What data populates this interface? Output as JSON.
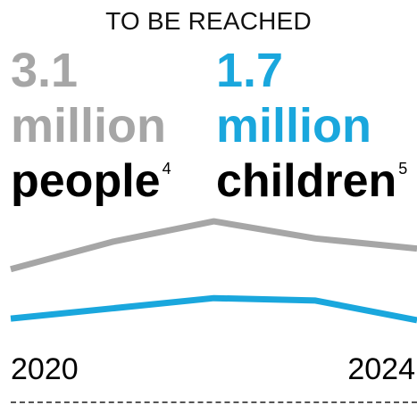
{
  "heading": "TO BE REACHED",
  "stats": {
    "people": {
      "number": "3.1",
      "unit": "million",
      "noun": "people",
      "footnote": "4",
      "color": "#a6a6a6"
    },
    "children": {
      "number": "1.7",
      "unit": "million",
      "noun": "children",
      "footnote": "5",
      "color": "#1aa7dd"
    }
  },
  "chart_data": {
    "type": "line",
    "x": [
      2020,
      2021,
      2022,
      2023,
      2024
    ],
    "x_tick_labels": [
      "2020",
      "2024"
    ],
    "series": [
      {
        "values": [
          2.1,
          2.9,
          3.5,
          3.0,
          2.7
        ],
        "color": "#a6a6a6"
      },
      {
        "values": [
          0.65,
          0.95,
          1.25,
          1.18,
          0.6
        ],
        "color": "#1aa7dd"
      }
    ],
    "ylim": [
      0,
      4
    ],
    "grid": false,
    "legend": "none"
  }
}
